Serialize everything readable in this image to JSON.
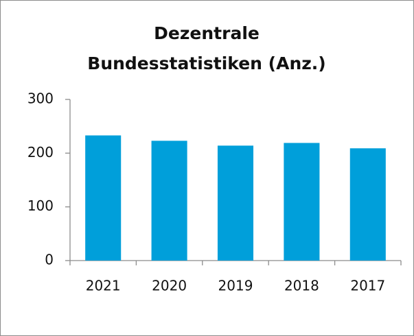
{
  "chart_data": {
    "type": "bar",
    "title": "Dezentrale Bundesstatistiken (Anz.)",
    "categories": [
      "2021",
      "2020",
      "2019",
      "2018",
      "2017"
    ],
    "values": [
      233,
      223,
      214,
      219,
      209
    ],
    "color": "#009fda",
    "ylim": [
      0,
      300
    ],
    "yticks": [
      0,
      100,
      200,
      300
    ],
    "grid": false
  }
}
